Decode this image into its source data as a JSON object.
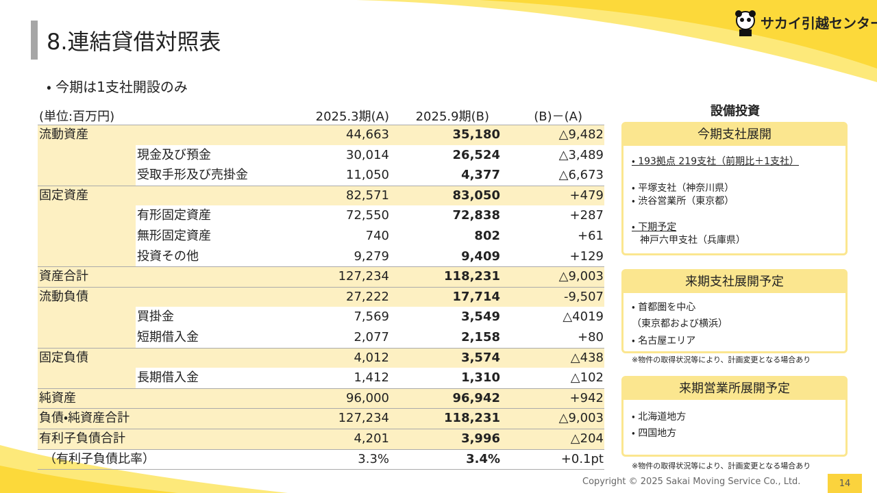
{
  "header": {
    "title": "8.連結貸借対照表",
    "logo": "サカイ引越センター"
  },
  "subtitle": "・ 今期は1支社開設のみ",
  "table": {
    "columns": [
      "(単位:百万円)",
      "2025.3期(A)",
      "2025.9期(B)",
      "(B)－(A)"
    ],
    "rows": [
      {
        "label": "流動資産",
        "a": "44,663",
        "b": "35,180",
        "diff": "△9,482"
      },
      {
        "sub": "現金及び預金",
        "a": "30,014",
        "b": "26,524",
        "diff": "△3,489"
      },
      {
        "sub": "受取手形及び売掛金",
        "a": "11,050",
        "b": "4,377",
        "diff": "△6,673"
      },
      {
        "label": "固定資産",
        "a": "82,571",
        "b": "83,050",
        "diff": "+479"
      },
      {
        "sub": "有形固定資産",
        "a": "72,550",
        "b": "72,838",
        "diff": "+287"
      },
      {
        "sub": "無形固定資産",
        "a": "740",
        "b": "802",
        "diff": "+61"
      },
      {
        "sub": "投資その他",
        "a": "9,279",
        "b": "9,409",
        "diff": "+129"
      },
      {
        "label": "資産合計",
        "a": "127,234",
        "b": "118,231",
        "diff": "△9,003"
      },
      {
        "label": "流動負債",
        "a": "27,222",
        "b": "17,714",
        "diff": "-9,507"
      },
      {
        "sub": "買掛金",
        "a": "7,569",
        "b": "3,549",
        "diff": "△4019"
      },
      {
        "sub": "短期借入金",
        "a": "2,077",
        "b": "2,158",
        "diff": "+80"
      },
      {
        "label": "固定負債",
        "a": "4,012",
        "b": "3,574",
        "diff": "△438"
      },
      {
        "sub": "長期借入金",
        "a": "1,412",
        "b": "1,310",
        "diff": "△102"
      },
      {
        "label": "純資産",
        "a": "96,000",
        "b": "96,942",
        "diff": "+942"
      },
      {
        "label": "負債・純資産合計",
        "a": "127,234",
        "b": "118,231",
        "diff": "△9,003"
      },
      {
        "label": "有利子負債合計",
        "a": "4,201",
        "b": "3,996",
        "diff": "△204"
      },
      {
        "label": "（有利子負債比率）",
        "a": "3.3%",
        "b": "3.4%",
        "diff": "+0.1pt"
      }
    ]
  },
  "side": {
    "heading": "設備投資",
    "boxes": [
      {
        "title": "今期支社展開",
        "items": [
          "・ 193拠点 219支社（前期比＋1支社）",
          "・ 平塚支社（神奈川県）",
          "・ 渋谷営業所（東京都）",
          "・ 下期予定",
          "神戸六甲支社（兵庫県）"
        ]
      },
      {
        "title": "来期支社展開予定",
        "items": [
          "・ 首都圏を中心",
          "（東京都および横浜）",
          "・ 名古屋エリア"
        ],
        "note": "※物件の取得状況等により、計画変更となる場合あり"
      },
      {
        "title": "来期営業所展開予定",
        "items": [
          "・ 北海道地方",
          "・ 四国地方"
        ],
        "note": "※物件の取得状況等により、計画変更となる場合あり"
      }
    ]
  },
  "footer": {
    "copyright": "Copyright © 2025 Sakai Moving Service Co., Ltd.",
    "page": "14"
  }
}
